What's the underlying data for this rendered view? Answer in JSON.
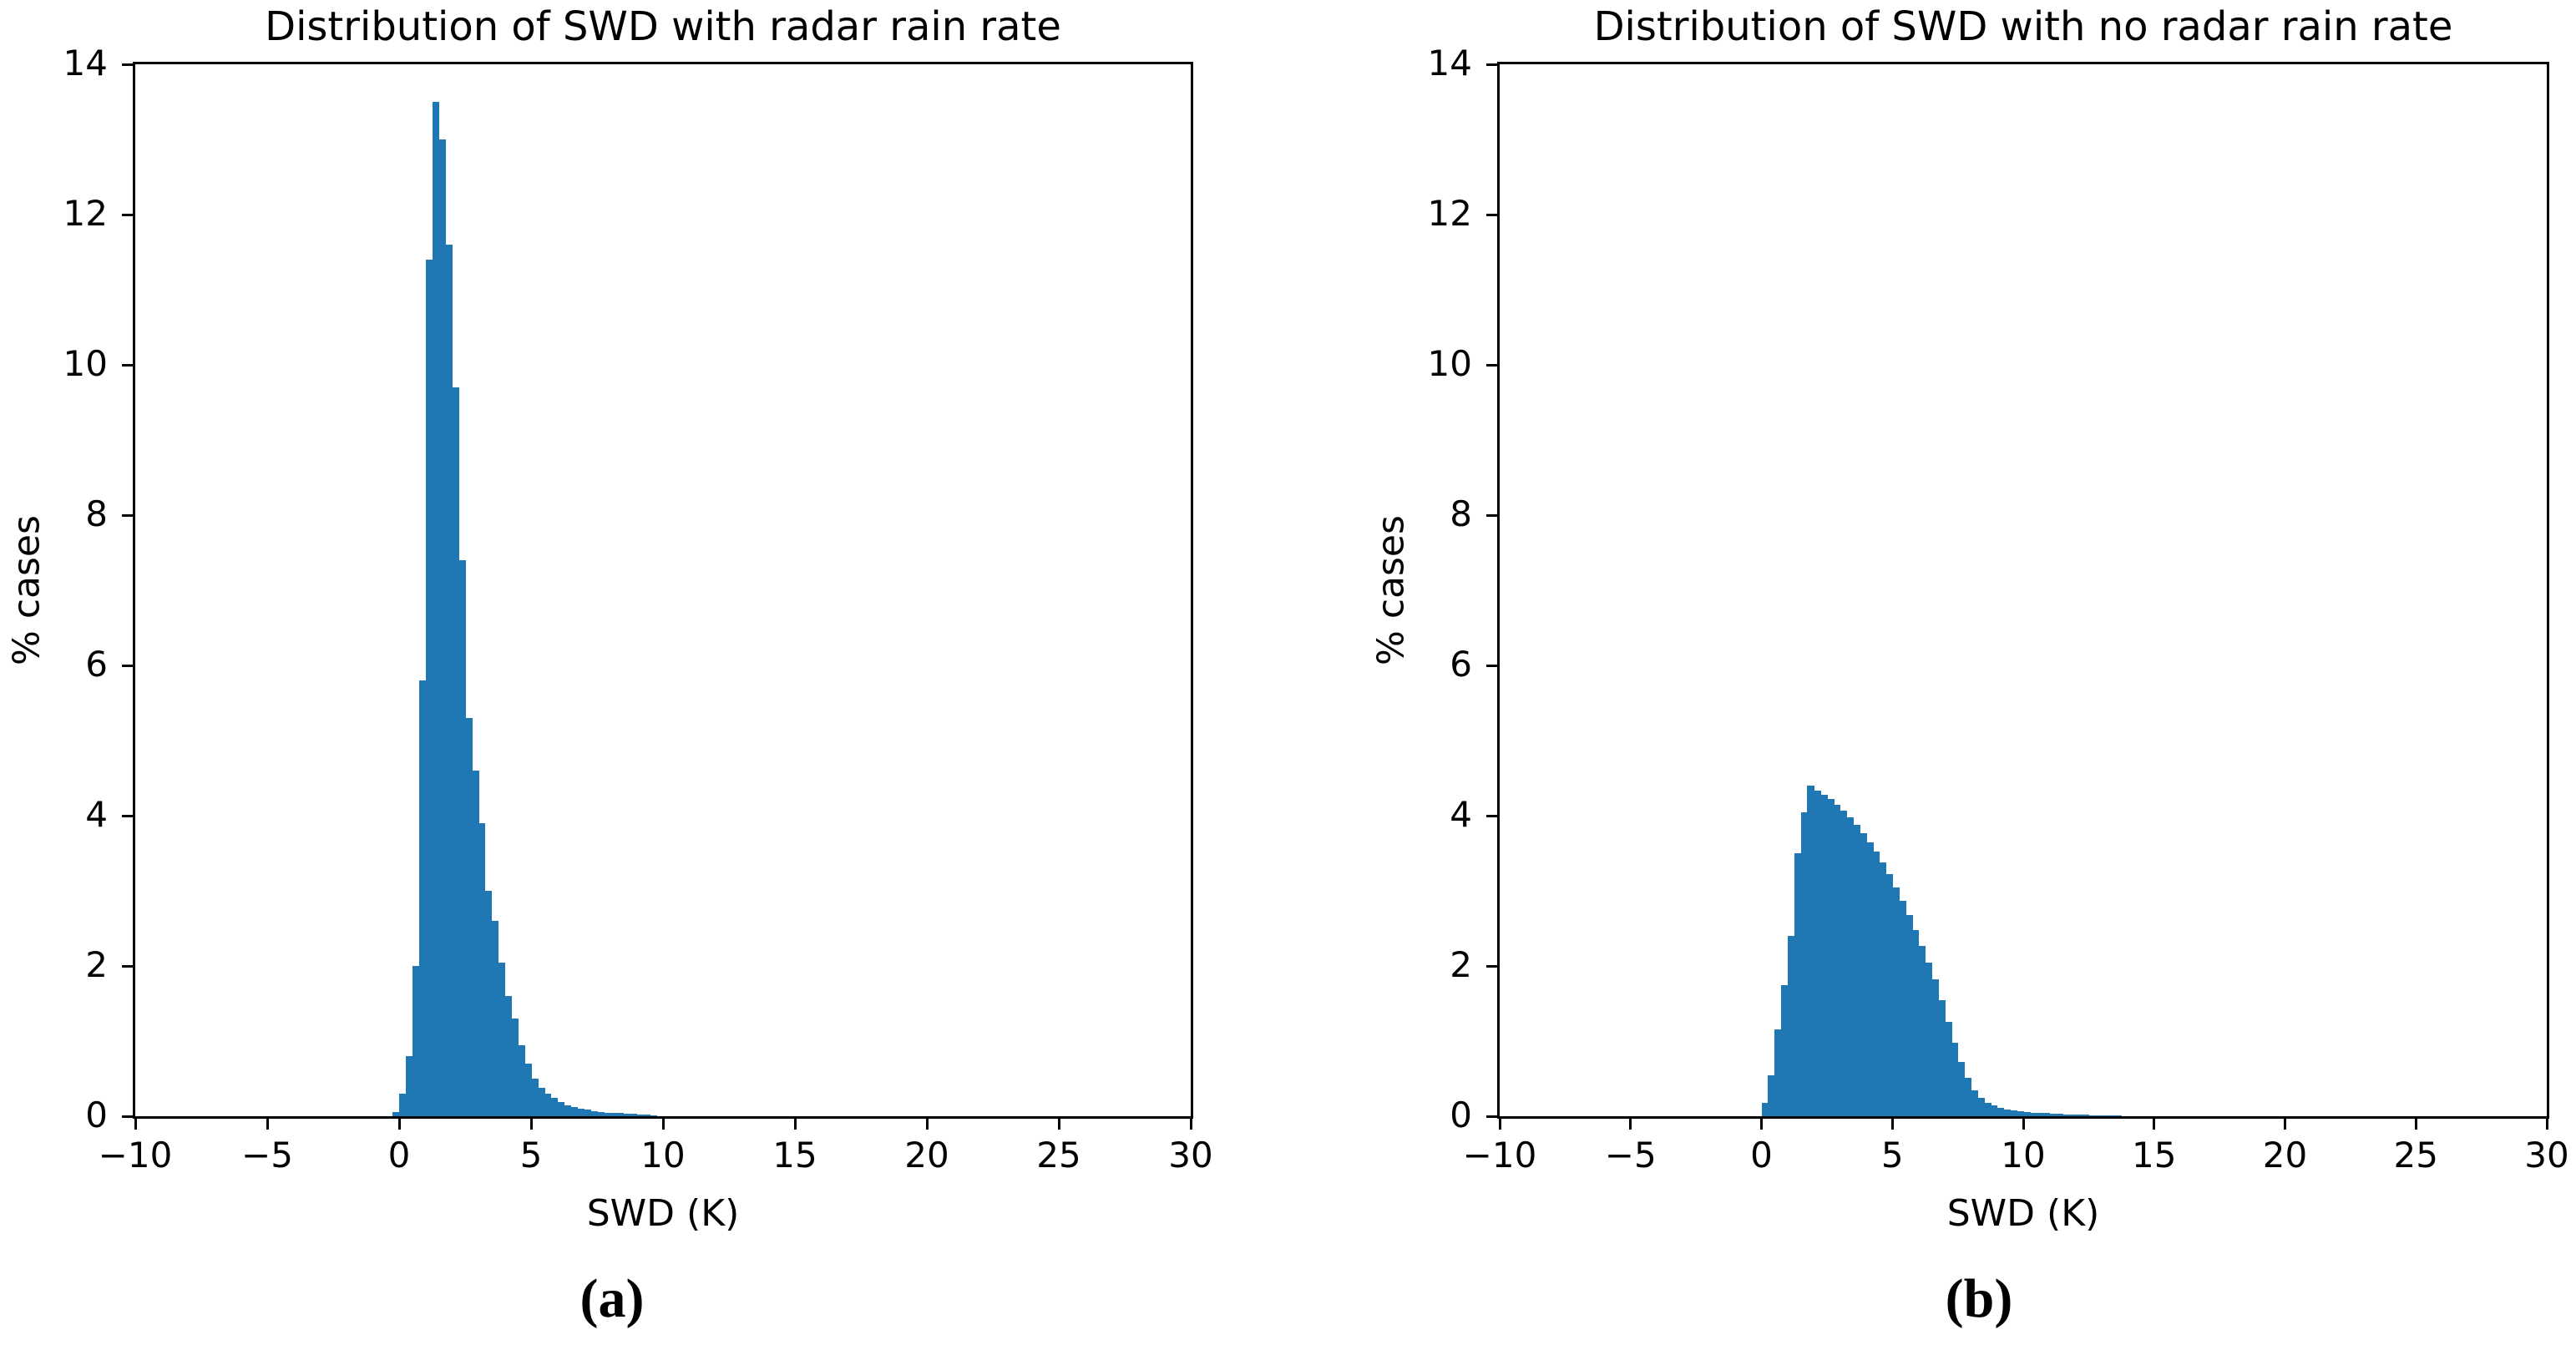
{
  "figure": {
    "background_color": "#ffffff",
    "text_color": "#000000",
    "bar_color": "#1f77b4"
  },
  "chart_data": [
    {
      "type": "bar",
      "title": "Distribution of SWD with radar rain rate",
      "xlabel": "SWD (K)",
      "ylabel": "% cases",
      "panel_label": "(a)",
      "legend": null,
      "grid": false,
      "xlim": [
        -10,
        30
      ],
      "ylim": [
        0,
        14
      ],
      "x_ticks": [
        -10,
        -5,
        0,
        5,
        10,
        15,
        20,
        25,
        30
      ],
      "x_tick_labels": [
        "−10",
        "−5",
        "0",
        "5",
        "10",
        "15",
        "20",
        "25",
        "30"
      ],
      "y_ticks": [
        0,
        2,
        4,
        6,
        8,
        10,
        12,
        14
      ],
      "y_tick_labels": [
        "0",
        "2",
        "4",
        "6",
        "8",
        "10",
        "12",
        "14"
      ],
      "bar_color": "#1f77b4",
      "bin_start": -0.25,
      "bin_width": 0.25,
      "values": [
        0.06,
        0.3,
        0.8,
        2.0,
        5.8,
        11.4,
        13.5,
        13.0,
        11.6,
        9.7,
        7.4,
        5.3,
        4.6,
        3.9,
        3.0,
        2.6,
        2.05,
        1.6,
        1.3,
        0.95,
        0.7,
        0.5,
        0.38,
        0.3,
        0.24,
        0.19,
        0.15,
        0.12,
        0.1,
        0.085,
        0.07,
        0.06,
        0.05,
        0.045,
        0.04,
        0.035,
        0.03,
        0.025,
        0.02,
        0.015
      ],
      "peak": {
        "x": 1.3,
        "value": 13.5
      }
    },
    {
      "type": "bar",
      "title": "Distribution of SWD with no radar rain rate",
      "xlabel": "SWD (K)",
      "ylabel": "% cases",
      "panel_label": "(b)",
      "legend": null,
      "grid": false,
      "xlim": [
        -10,
        30
      ],
      "ylim": [
        0,
        14
      ],
      "x_ticks": [
        -10,
        -5,
        0,
        5,
        10,
        15,
        20,
        25,
        30
      ],
      "x_tick_labels": [
        "−10",
        "−5",
        "0",
        "5",
        "10",
        "15",
        "20",
        "25",
        "30"
      ],
      "y_ticks": [
        0,
        2,
        4,
        6,
        8,
        10,
        12,
        14
      ],
      "y_tick_labels": [
        "0",
        "2",
        "4",
        "6",
        "8",
        "10",
        "12",
        "14"
      ],
      "bar_color": "#1f77b4",
      "bin_start": 0.0,
      "bin_width": 0.25,
      "values": [
        0.18,
        0.55,
        1.16,
        1.75,
        2.4,
        3.5,
        4.05,
        4.4,
        4.33,
        4.28,
        4.22,
        4.15,
        4.07,
        3.98,
        3.88,
        3.77,
        3.65,
        3.52,
        3.38,
        3.22,
        3.05,
        2.87,
        2.68,
        2.48,
        2.27,
        2.05,
        1.82,
        1.55,
        1.26,
        0.98,
        0.72,
        0.51,
        0.35,
        0.25,
        0.18,
        0.14,
        0.11,
        0.09,
        0.08,
        0.07,
        0.06,
        0.05,
        0.045,
        0.04,
        0.035,
        0.03,
        0.025,
        0.022,
        0.02,
        0.017,
        0.014,
        0.012,
        0.01,
        0.008,
        0.006
      ],
      "peak": {
        "x": 1.9,
        "value": 4.4
      }
    }
  ]
}
